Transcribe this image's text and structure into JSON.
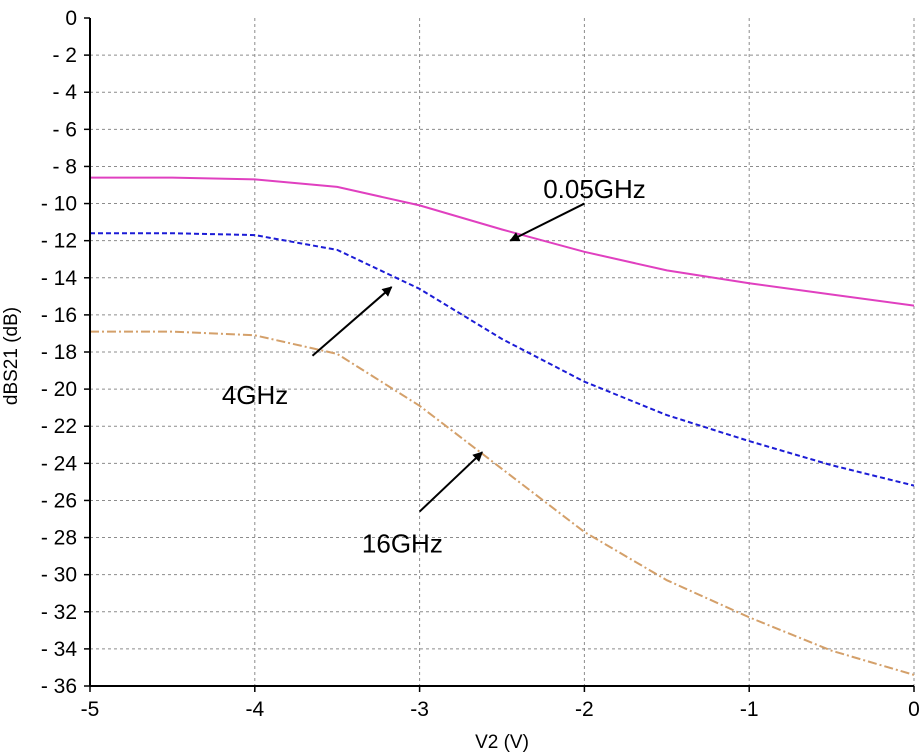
{
  "chart_data": {
    "type": "line",
    "title": "",
    "xlabel": "V2 (V)",
    "ylabel": "dBS21 (dB)",
    "xlim": [
      -5,
      0
    ],
    "ylim": [
      -36,
      0
    ],
    "grid": true,
    "x_ticks": [
      -5,
      -4,
      -3,
      -2,
      -1,
      0
    ],
    "x_tick_labels": [
      "-5",
      "-4",
      "-3",
      "-2",
      "-1",
      "0"
    ],
    "y_ticks": [
      0,
      -2,
      -4,
      -6,
      -8,
      -10,
      -12,
      -14,
      -16,
      -18,
      -20,
      -22,
      -24,
      -26,
      -28,
      -30,
      -32,
      -34,
      -36
    ],
    "y_tick_labels": [
      "0",
      "- 2",
      "- 4",
      "- 6",
      "- 8",
      "- 10",
      "- 12",
      "- 14",
      "- 16",
      "- 18",
      "- 20",
      "- 22",
      "- 24",
      "- 26",
      "- 28",
      "- 30",
      "- 32",
      "- 34",
      "- 36"
    ],
    "series": [
      {
        "color": "#e040c0",
        "dash": "solid",
        "x": [
          -5,
          -4.5,
          -4,
          -3.5,
          -3,
          -2.5,
          -2,
          -1.5,
          -1,
          -0.5,
          0
        ],
        "y": [
          -8.6,
          -8.6,
          -8.7,
          -9.1,
          -10.1,
          -11.4,
          -12.6,
          -13.6,
          -14.3,
          -14.9,
          -15.5
        ]
      },
      {
        "color": "#1c1cd6",
        "dash": "dashed",
        "x": [
          -5,
          -4.5,
          -4,
          -3.5,
          -3,
          -2.5,
          -2,
          -1.5,
          -1,
          -0.5,
          0
        ],
        "y": [
          -11.6,
          -11.6,
          -11.7,
          -12.5,
          -14.6,
          -17.3,
          -19.6,
          -21.4,
          -22.8,
          -24.1,
          -25.2
        ]
      },
      {
        "color": "#d4a06a",
        "dash": "dashdot",
        "x": [
          -5,
          -4.5,
          -4,
          -3.5,
          -3,
          -2.5,
          -2,
          -1.5,
          -1,
          -0.5,
          0
        ],
        "y": [
          -16.9,
          -16.9,
          -17.1,
          -18.1,
          -20.9,
          -24.3,
          -27.7,
          -30.3,
          -32.3,
          -34.1,
          -35.4
        ]
      }
    ],
    "annotations": [
      {
        "text": "0.05GHz",
        "text_x": -2.25,
        "text_y": -9.7,
        "arrow_from": [
          -2.0,
          -10.0
        ],
        "arrow_to": [
          -2.45,
          -12.0
        ]
      },
      {
        "text": "4GHz",
        "text_x": -4.2,
        "text_y": -20.8,
        "arrow_from": [
          -3.65,
          -18.2
        ],
        "arrow_to": [
          -3.17,
          -14.5
        ]
      },
      {
        "text": "16GHz",
        "text_x": -3.35,
        "text_y": -28.8,
        "arrow_from": [
          -3.0,
          -26.6
        ],
        "arrow_to": [
          -2.62,
          -23.4
        ]
      }
    ]
  }
}
